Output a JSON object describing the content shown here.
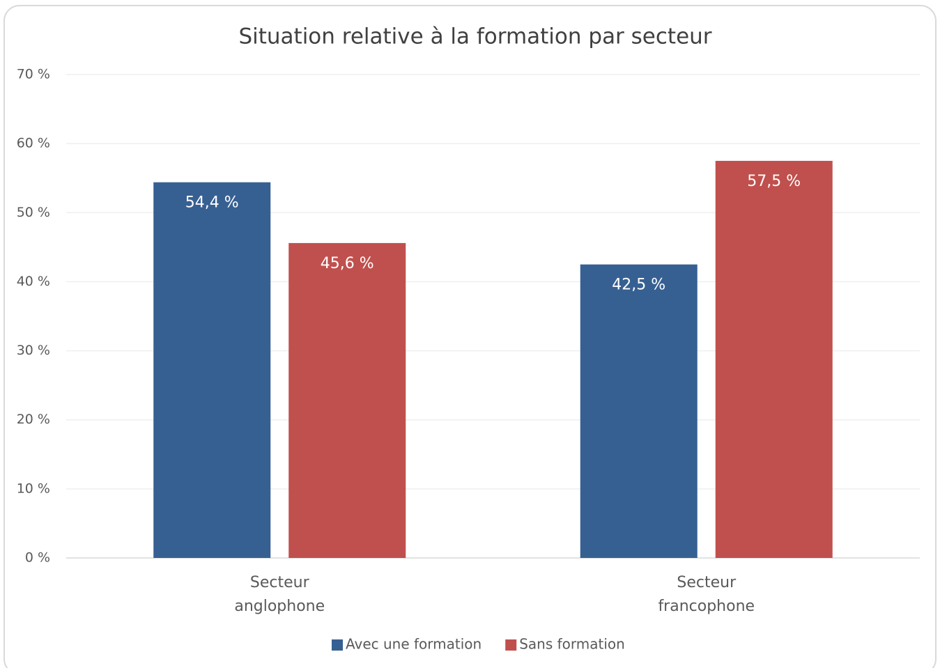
{
  "chart_data": {
    "type": "bar",
    "title": "Situation relative à la formation par secteur",
    "categories": [
      "Secteur anglophone",
      "Secteur francophone"
    ],
    "series": [
      {
        "name": "Avec une formation",
        "color": "#376092",
        "values": [
          54.4,
          42.5
        ],
        "value_labels": [
          "54,4 %",
          "42,5 %"
        ]
      },
      {
        "name": "Sans formation",
        "color": "#c0504d",
        "values": [
          45.6,
          57.5
        ],
        "value_labels": [
          "45,6 %",
          "57,5 %"
        ]
      }
    ],
    "ylim": [
      0,
      70
    ],
    "yticks": [
      {
        "value": 0,
        "label": "0 %"
      },
      {
        "value": 10,
        "label": "10 %"
      },
      {
        "value": 20,
        "label": "20 %"
      },
      {
        "value": 30,
        "label": "30 %"
      },
      {
        "value": 40,
        "label": "40 %"
      },
      {
        "value": 50,
        "label": "50 %"
      },
      {
        "value": 60,
        "label": "60 %"
      },
      {
        "value": 70,
        "label": "70 %"
      }
    ],
    "grid": true,
    "legend": "bottom"
  }
}
